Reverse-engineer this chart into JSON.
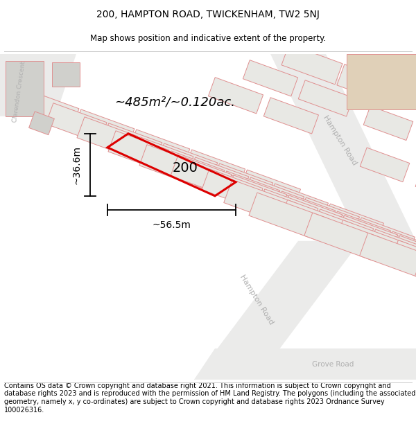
{
  "title": "200, HAMPTON ROAD, TWICKENHAM, TW2 5NJ",
  "subtitle": "Map shows position and indicative extent of the property.",
  "footer": "Contains OS data © Crown copyright and database right 2021. This information is subject to Crown copyright and database rights 2023 and is reproduced with the permission of HM Land Registry. The polygons (including the associated geometry, namely x, y co-ordinates) are subject to Crown copyright and database rights 2023 Ordnance Survey 100026316.",
  "area_label": "~485m²/~0.120ac.",
  "plot_number": "200",
  "width_label": "~56.5m",
  "height_label": "~36.6m",
  "map_bg": "#f7f7f5",
  "parcel_fill": "#e8e8e4",
  "parcel_edge": "#e09090",
  "road_fill": "#ebebea",
  "tan_building": "#e0d0b8",
  "grey_building": "#d0d0cc",
  "subject_color": "#dd0000",
  "road_label_color": "#b0b0b0",
  "title_fontsize": 10,
  "subtitle_fontsize": 8.5,
  "footer_fontsize": 7.0
}
